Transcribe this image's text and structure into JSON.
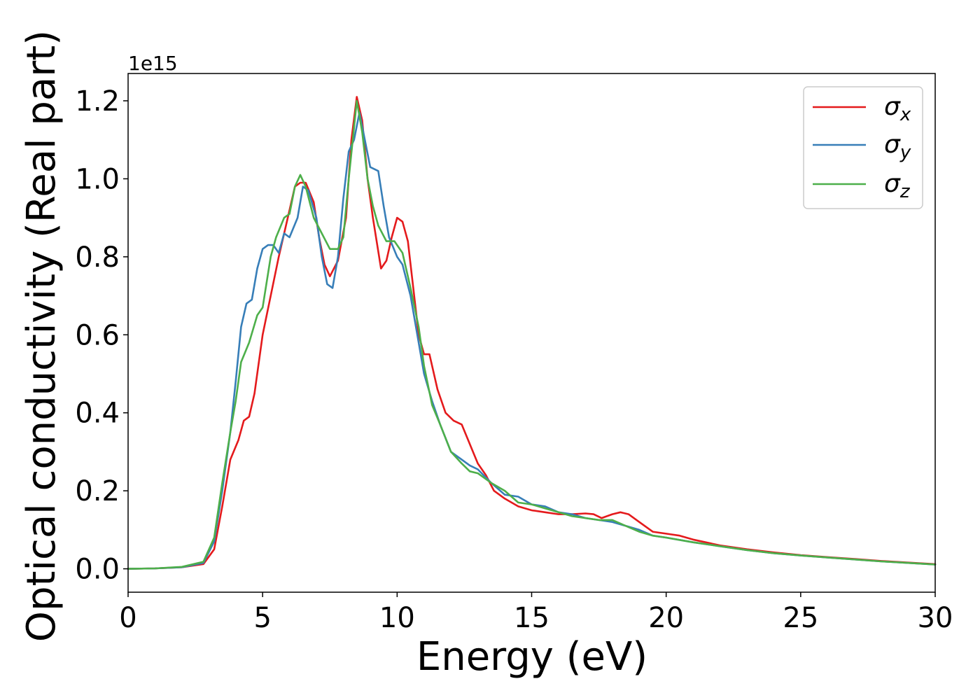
{
  "chart_data": {
    "type": "line",
    "xlabel": "Energy (eV)",
    "ylabel": "Optical conductivity (Real part)",
    "y_offset_label": "1e15",
    "xlim": [
      0,
      30
    ],
    "ylim": [
      -0.06,
      1.27
    ],
    "x_ticks": [
      0,
      5,
      10,
      15,
      20,
      25,
      30
    ],
    "x_tick_labels": [
      "0",
      "5",
      "10",
      "15",
      "20",
      "25",
      "30"
    ],
    "y_ticks": [
      0.0,
      0.2,
      0.4,
      0.6,
      0.8,
      1.0,
      1.2
    ],
    "y_tick_labels": [
      "0.0",
      "0.2",
      "0.4",
      "0.6",
      "0.8",
      "1.0",
      "1.2"
    ],
    "grid": false,
    "legend_position": "top-right",
    "series": [
      {
        "name": "σx",
        "legend_symbol": "σ",
        "legend_subscript": "x",
        "color": "#e41a1c",
        "points": [
          [
            0,
            0
          ],
          [
            1,
            0.001
          ],
          [
            2,
            0.004
          ],
          [
            2.8,
            0.012
          ],
          [
            3.2,
            0.05
          ],
          [
            3.5,
            0.16
          ],
          [
            3.8,
            0.28
          ],
          [
            4.1,
            0.33
          ],
          [
            4.3,
            0.38
          ],
          [
            4.5,
            0.39
          ],
          [
            4.7,
            0.45
          ],
          [
            5,
            0.6
          ],
          [
            5.3,
            0.7
          ],
          [
            5.6,
            0.8
          ],
          [
            5.9,
            0.89
          ],
          [
            6.2,
            0.98
          ],
          [
            6.4,
            0.99
          ],
          [
            6.6,
            0.99
          ],
          [
            6.9,
            0.94
          ],
          [
            7.1,
            0.85
          ],
          [
            7.3,
            0.78
          ],
          [
            7.5,
            0.75
          ],
          [
            7.8,
            0.79
          ],
          [
            8.1,
            0.9
          ],
          [
            8.3,
            1.1
          ],
          [
            8.5,
            1.21
          ],
          [
            8.7,
            1.15
          ],
          [
            8.9,
            1.0
          ],
          [
            9.1,
            0.9
          ],
          [
            9.4,
            0.77
          ],
          [
            9.6,
            0.79
          ],
          [
            9.8,
            0.85
          ],
          [
            10,
            0.9
          ],
          [
            10.2,
            0.89
          ],
          [
            10.4,
            0.84
          ],
          [
            10.6,
            0.72
          ],
          [
            10.8,
            0.6
          ],
          [
            11,
            0.55
          ],
          [
            11.2,
            0.55
          ],
          [
            11.5,
            0.46
          ],
          [
            11.8,
            0.4
          ],
          [
            12.1,
            0.38
          ],
          [
            12.4,
            0.37
          ],
          [
            12.7,
            0.32
          ],
          [
            13,
            0.27
          ],
          [
            13.3,
            0.24
          ],
          [
            13.6,
            0.2
          ],
          [
            14,
            0.18
          ],
          [
            14.5,
            0.16
          ],
          [
            15,
            0.15
          ],
          [
            15.5,
            0.145
          ],
          [
            16,
            0.14
          ],
          [
            16.5,
            0.14
          ],
          [
            17,
            0.142
          ],
          [
            17.3,
            0.14
          ],
          [
            17.6,
            0.13
          ],
          [
            18,
            0.14
          ],
          [
            18.3,
            0.145
          ],
          [
            18.6,
            0.14
          ],
          [
            19,
            0.12
          ],
          [
            19.5,
            0.095
          ],
          [
            20,
            0.09
          ],
          [
            20.5,
            0.085
          ],
          [
            21,
            0.075
          ],
          [
            22,
            0.06
          ],
          [
            23,
            0.05
          ],
          [
            24,
            0.042
          ],
          [
            25,
            0.035
          ],
          [
            26,
            0.03
          ],
          [
            27,
            0.025
          ],
          [
            28,
            0.02
          ],
          [
            29,
            0.016
          ],
          [
            30,
            0.012
          ]
        ]
      },
      {
        "name": "σy",
        "legend_symbol": "σ",
        "legend_subscript": "y",
        "color": "#377eb8",
        "points": [
          [
            0,
            0
          ],
          [
            1,
            0.001
          ],
          [
            2,
            0.004
          ],
          [
            2.8,
            0.015
          ],
          [
            3.2,
            0.07
          ],
          [
            3.5,
            0.2
          ],
          [
            3.8,
            0.35
          ],
          [
            4,
            0.48
          ],
          [
            4.2,
            0.62
          ],
          [
            4.4,
            0.68
          ],
          [
            4.6,
            0.69
          ],
          [
            4.8,
            0.77
          ],
          [
            5,
            0.82
          ],
          [
            5.2,
            0.83
          ],
          [
            5.4,
            0.83
          ],
          [
            5.6,
            0.81
          ],
          [
            5.8,
            0.86
          ],
          [
            6,
            0.85
          ],
          [
            6.3,
            0.9
          ],
          [
            6.5,
            0.98
          ],
          [
            6.7,
            0.97
          ],
          [
            7,
            0.9
          ],
          [
            7.2,
            0.8
          ],
          [
            7.4,
            0.73
          ],
          [
            7.6,
            0.72
          ],
          [
            7.8,
            0.8
          ],
          [
            8,
            0.95
          ],
          [
            8.2,
            1.07
          ],
          [
            8.4,
            1.1
          ],
          [
            8.6,
            1.17
          ],
          [
            8.8,
            1.1
          ],
          [
            9,
            1.03
          ],
          [
            9.3,
            1.02
          ],
          [
            9.5,
            0.93
          ],
          [
            9.7,
            0.85
          ],
          [
            10,
            0.8
          ],
          [
            10.2,
            0.78
          ],
          [
            10.5,
            0.7
          ],
          [
            10.8,
            0.58
          ],
          [
            11,
            0.5
          ],
          [
            11.3,
            0.43
          ],
          [
            11.6,
            0.37
          ],
          [
            12,
            0.3
          ],
          [
            12.4,
            0.28
          ],
          [
            12.7,
            0.265
          ],
          [
            13,
            0.255
          ],
          [
            13.5,
            0.22
          ],
          [
            14,
            0.19
          ],
          [
            14.5,
            0.185
          ],
          [
            15,
            0.165
          ],
          [
            15.5,
            0.16
          ],
          [
            16,
            0.145
          ],
          [
            16.5,
            0.14
          ],
          [
            17,
            0.13
          ],
          [
            17.5,
            0.125
          ],
          [
            18,
            0.12
          ],
          [
            18.5,
            0.11
          ],
          [
            19,
            0.1
          ],
          [
            19.5,
            0.085
          ],
          [
            20,
            0.08
          ],
          [
            21,
            0.068
          ],
          [
            22,
            0.058
          ],
          [
            23,
            0.048
          ],
          [
            24,
            0.04
          ],
          [
            25,
            0.034
          ],
          [
            26,
            0.029
          ],
          [
            27,
            0.024
          ],
          [
            28,
            0.019
          ],
          [
            29,
            0.015
          ],
          [
            30,
            0.011
          ]
        ]
      },
      {
        "name": "σz",
        "legend_symbol": "σ",
        "legend_subscript": "z",
        "color": "#4daf4a",
        "points": [
          [
            0,
            0
          ],
          [
            1,
            0.001
          ],
          [
            2,
            0.005
          ],
          [
            2.8,
            0.018
          ],
          [
            3.2,
            0.08
          ],
          [
            3.5,
            0.22
          ],
          [
            3.8,
            0.35
          ],
          [
            4,
            0.43
          ],
          [
            4.2,
            0.53
          ],
          [
            4.5,
            0.58
          ],
          [
            4.8,
            0.65
          ],
          [
            5,
            0.67
          ],
          [
            5.3,
            0.8
          ],
          [
            5.5,
            0.85
          ],
          [
            5.8,
            0.9
          ],
          [
            6,
            0.91
          ],
          [
            6.2,
            0.98
          ],
          [
            6.4,
            1.01
          ],
          [
            6.6,
            0.98
          ],
          [
            6.9,
            0.9
          ],
          [
            7.2,
            0.86
          ],
          [
            7.5,
            0.82
          ],
          [
            7.8,
            0.82
          ],
          [
            8,
            0.85
          ],
          [
            8.2,
            1.0
          ],
          [
            8.5,
            1.2
          ],
          [
            8.7,
            1.12
          ],
          [
            8.9,
            1.0
          ],
          [
            9.1,
            0.93
          ],
          [
            9.3,
            0.88
          ],
          [
            9.6,
            0.84
          ],
          [
            9.9,
            0.84
          ],
          [
            10.2,
            0.81
          ],
          [
            10.5,
            0.72
          ],
          [
            10.8,
            0.62
          ],
          [
            11,
            0.52
          ],
          [
            11.3,
            0.42
          ],
          [
            11.6,
            0.37
          ],
          [
            12,
            0.3
          ],
          [
            12.4,
            0.27
          ],
          [
            12.7,
            0.25
          ],
          [
            13,
            0.245
          ],
          [
            13.5,
            0.22
          ],
          [
            14,
            0.2
          ],
          [
            14.5,
            0.17
          ],
          [
            15,
            0.165
          ],
          [
            15.5,
            0.155
          ],
          [
            16,
            0.145
          ],
          [
            16.5,
            0.135
          ],
          [
            17,
            0.13
          ],
          [
            17.5,
            0.125
          ],
          [
            18,
            0.125
          ],
          [
            18.5,
            0.11
          ],
          [
            19,
            0.095
          ],
          [
            19.5,
            0.085
          ],
          [
            20,
            0.08
          ],
          [
            21,
            0.068
          ],
          [
            22,
            0.058
          ],
          [
            23,
            0.048
          ],
          [
            24,
            0.04
          ],
          [
            25,
            0.034
          ],
          [
            26,
            0.029
          ],
          [
            27,
            0.024
          ],
          [
            28,
            0.019
          ],
          [
            29,
            0.015
          ],
          [
            30,
            0.011
          ]
        ]
      }
    ]
  }
}
